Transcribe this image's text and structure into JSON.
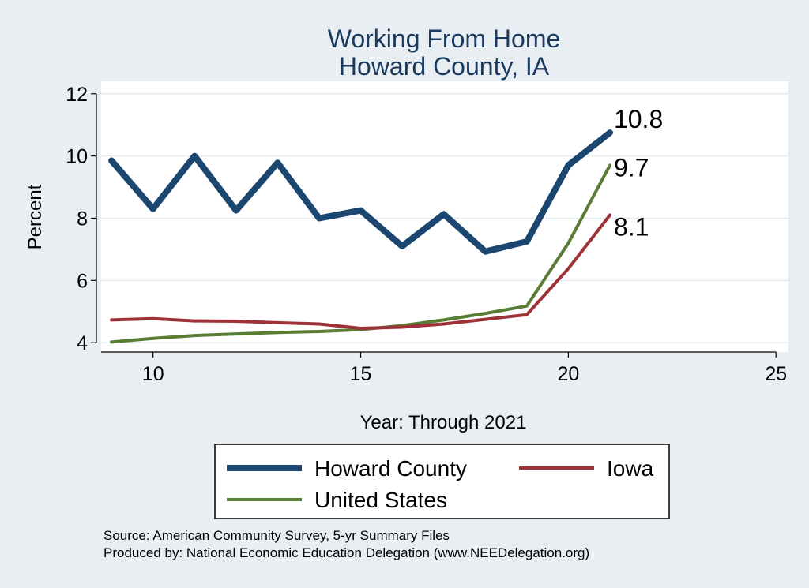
{
  "chart_data": {
    "type": "line",
    "title": [
      "Working From Home",
      "Howard County, IA"
    ],
    "xlabel": "Year: Through 2021",
    "ylabel": "Percent",
    "xlim": [
      8.75,
      25.3
    ],
    "ylim": [
      3.7,
      12.4
    ],
    "xticks": [
      10,
      15,
      20,
      25
    ],
    "yticks": [
      4,
      6,
      8,
      10,
      12
    ],
    "grid": "horizontal",
    "legend_position": "bottom",
    "series": [
      {
        "name": "Howard County",
        "color": "#1a4670",
        "width": 8,
        "x": [
          9,
          10,
          11,
          12,
          13,
          14,
          15,
          16,
          17,
          18,
          19,
          20,
          21
        ],
        "y": [
          9.85,
          8.3,
          10.0,
          8.25,
          9.78,
          8.0,
          8.25,
          7.1,
          8.13,
          6.93,
          7.25,
          9.7,
          10.75
        ],
        "end_label": "10.8"
      },
      {
        "name": "Iowa",
        "color": "#9e3238",
        "width": 4,
        "x": [
          9,
          10,
          11,
          12,
          13,
          14,
          15,
          16,
          17,
          18,
          19,
          20,
          21
        ],
        "y": [
          4.73,
          4.77,
          4.7,
          4.69,
          4.64,
          4.6,
          4.46,
          4.5,
          4.6,
          4.75,
          4.9,
          6.38,
          8.1
        ],
        "end_label": "8.1"
      },
      {
        "name": "United States",
        "color": "#5a7d35",
        "width": 4,
        "x": [
          9,
          10,
          11,
          12,
          13,
          14,
          15,
          16,
          17,
          18,
          19,
          20,
          21
        ],
        "y": [
          4.02,
          4.14,
          4.23,
          4.28,
          4.33,
          4.36,
          4.42,
          4.55,
          4.73,
          4.94,
          5.18,
          7.2,
          9.7
        ],
        "end_label": "9.7"
      }
    ],
    "legend": [
      {
        "name": "Howard County",
        "color": "#1a4670",
        "width": 8
      },
      {
        "name": "Iowa",
        "color": "#9e3238",
        "width": 4
      },
      {
        "name": "United States",
        "color": "#5a7d35",
        "width": 4
      }
    ],
    "notes": [
      "Source: American Community Survey, 5-yr Summary Files",
      "Produced by: National Economic Education Delegation (www.NEEDelegation.org)"
    ]
  }
}
